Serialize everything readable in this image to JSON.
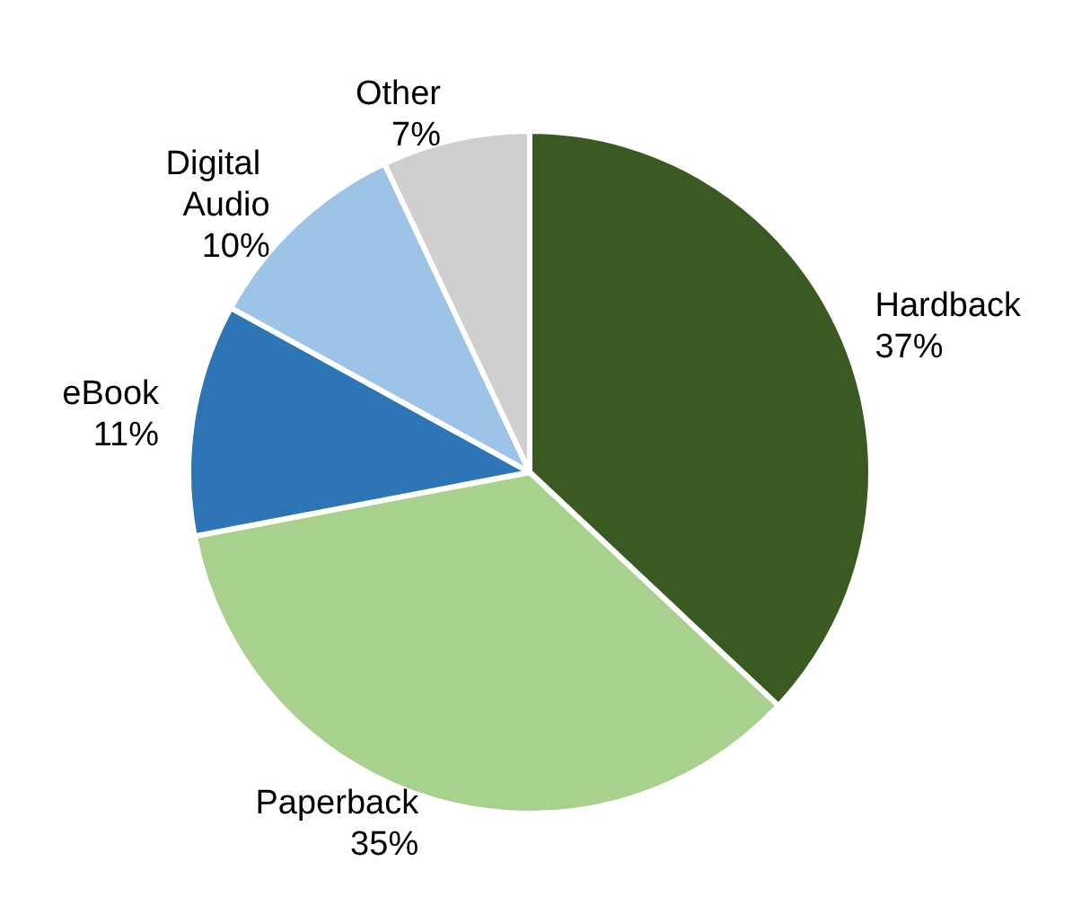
{
  "chart_data": {
    "type": "pie",
    "categories": [
      "Hardback",
      "Paperback",
      "eBook",
      "Digital Audio",
      "Other"
    ],
    "values": [
      37,
      35,
      11,
      10,
      7
    ],
    "value_labels": [
      "37%",
      "35%",
      "11%",
      "10%",
      "7%"
    ],
    "colors": [
      "#3a5a22",
      "#a8d18d",
      "#2e75b6",
      "#9dc3e6",
      "#d0cece"
    ]
  }
}
